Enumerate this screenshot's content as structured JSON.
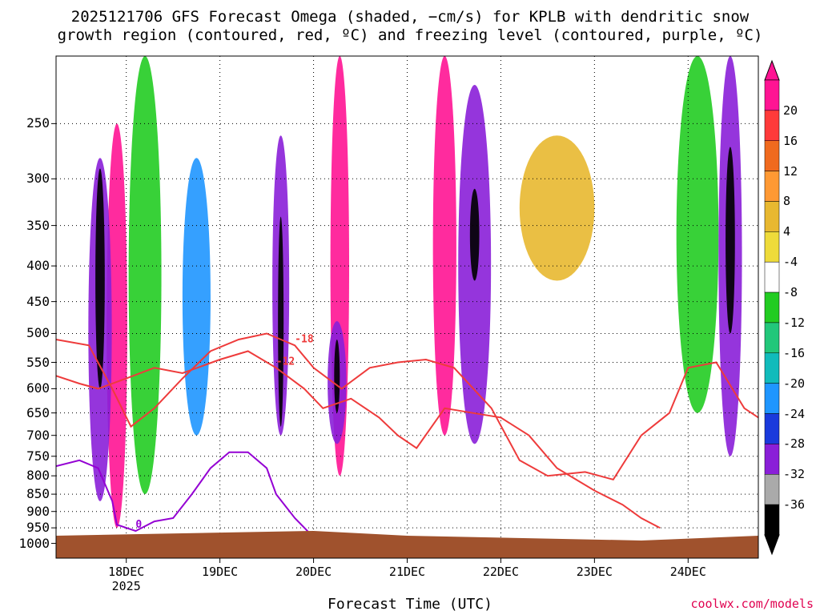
{
  "title": {
    "line1": "2025121706 GFS Forecast Omega (shaded, −cm/s) for KPLB with dendritic snow",
    "line2": "growth region (contoured, red, ºC) and freezing level (contoured, purple, ºC)"
  },
  "credit": "coolwx.com/models",
  "chart_data": {
    "type": "heatmap",
    "xlabel": "Forecast Time (UTC)",
    "x_ticks": [
      {
        "label": "18DEC",
        "sub": "2025",
        "day": 18
      },
      {
        "label": "19DEC",
        "sub": "",
        "day": 19
      },
      {
        "label": "20DEC",
        "sub": "",
        "day": 20
      },
      {
        "label": "21DEC",
        "sub": "",
        "day": 21
      },
      {
        "label": "22DEC",
        "sub": "",
        "day": 22
      },
      {
        "label": "23DEC",
        "sub": "",
        "day": 23
      },
      {
        "label": "24DEC",
        "sub": "",
        "day": 24
      }
    ],
    "x_range_days": [
      17.25,
      24.75
    ],
    "y_ticks": [
      250,
      300,
      350,
      400,
      450,
      500,
      550,
      600,
      650,
      700,
      750,
      800,
      850,
      900,
      950,
      1000
    ],
    "y_range_hpa": [
      200,
      1050
    ],
    "y_scale": "log-pressure",
    "colorbar": {
      "ticks": [
        "20",
        "16",
        "12",
        "8",
        "4",
        "-4",
        "-8",
        "-12",
        "-16",
        "-20",
        "-24",
        "-28",
        "-32",
        "-36"
      ],
      "colors": [
        "#ff1493",
        "#ff3a3a",
        "#f06a1e",
        "#ff9933",
        "#e8b830",
        "#eedb3a",
        "#ffffff",
        "#22cc22",
        "#22c77a",
        "#11bbbb",
        "#1f96ff",
        "#1a3adc",
        "#8a1fd8",
        "#aaaaaa",
        "#000000"
      ],
      "tick_colors": [
        "#ff1493",
        "#ff3a3a",
        "#f06a1e",
        "#ff9933",
        "#e8b830",
        "#eedb3a",
        "#ffffff",
        "#22cc22",
        "#22c77a",
        "#11bbbb",
        "#1f96ff",
        "#1a3adc",
        "#8a1fd8",
        "#aaaaaa",
        "#000000"
      ]
    },
    "omega_bands": [
      {
        "day": 17.9,
        "width": 0.22,
        "top": 250,
        "bottom": 950,
        "color": "#ff1493"
      },
      {
        "day": 17.72,
        "width": 0.25,
        "top": 280,
        "bottom": 870,
        "color": "#8a1fd8"
      },
      {
        "day": 17.72,
        "width": 0.1,
        "top": 290,
        "bottom": 600,
        "color": "#000000"
      },
      {
        "day": 18.2,
        "width": 0.35,
        "top": 200,
        "bottom": 850,
        "color": "#22cc22"
      },
      {
        "day": 18.75,
        "width": 0.3,
        "top": 280,
        "bottom": 700,
        "color": "#1f96ff"
      },
      {
        "day": 19.65,
        "width": 0.18,
        "top": 260,
        "bottom": 700,
        "color": "#8a1fd8"
      },
      {
        "day": 19.65,
        "width": 0.06,
        "top": 340,
        "bottom": 680,
        "color": "#000000"
      },
      {
        "day": 20.28,
        "width": 0.2,
        "top": 200,
        "bottom": 800,
        "color": "#ff1493"
      },
      {
        "day": 20.25,
        "width": 0.2,
        "top": 480,
        "bottom": 720,
        "color": "#8a1fd8"
      },
      {
        "day": 20.25,
        "width": 0.06,
        "top": 510,
        "bottom": 650,
        "color": "#000000"
      },
      {
        "day": 21.4,
        "width": 0.25,
        "top": 200,
        "bottom": 700,
        "color": "#ff1493"
      },
      {
        "day": 21.72,
        "width": 0.35,
        "top": 220,
        "bottom": 720,
        "color": "#8a1fd8"
      },
      {
        "day": 21.72,
        "width": 0.1,
        "top": 310,
        "bottom": 420,
        "color": "#000000"
      },
      {
        "day": 22.6,
        "width": 0.8,
        "top": 260,
        "bottom": 420,
        "color": "#e8b830"
      },
      {
        "day": 24.1,
        "width": 0.45,
        "top": 200,
        "bottom": 650,
        "color": "#22cc22"
      },
      {
        "day": 24.45,
        "width": 0.25,
        "top": 200,
        "bottom": 750,
        "color": "#8a1fd8"
      },
      {
        "day": 24.45,
        "width": 0.1,
        "top": 270,
        "bottom": 500,
        "color": "#000000"
      }
    ],
    "red_contours": [
      {
        "label": "-12",
        "points": [
          [
            17.25,
            575
          ],
          [
            17.5,
            590
          ],
          [
            17.7,
            600
          ],
          [
            18.0,
            580
          ],
          [
            18.3,
            560
          ],
          [
            18.6,
            570
          ],
          [
            19.0,
            545
          ],
          [
            19.3,
            530
          ],
          [
            19.6,
            560
          ],
          [
            19.9,
            600
          ],
          [
            20.1,
            640
          ],
          [
            20.4,
            620
          ],
          [
            20.7,
            660
          ],
          [
            20.9,
            700
          ],
          [
            21.1,
            730
          ],
          [
            21.4,
            640
          ],
          [
            21.7,
            650
          ],
          [
            22.0,
            660
          ],
          [
            22.3,
            700
          ],
          [
            22.6,
            780
          ],
          [
            23.0,
            840
          ],
          [
            23.3,
            880
          ],
          [
            23.5,
            920
          ],
          [
            23.7,
            950
          ]
        ]
      },
      {
        "label": "-18",
        "points": [
          [
            17.25,
            510
          ],
          [
            17.6,
            520
          ],
          [
            17.85,
            600
          ],
          [
            18.05,
            680
          ],
          [
            18.3,
            640
          ],
          [
            18.6,
            580
          ],
          [
            18.9,
            530
          ],
          [
            19.2,
            510
          ],
          [
            19.5,
            500
          ],
          [
            19.8,
            520
          ],
          [
            20.0,
            560
          ],
          [
            20.3,
            600
          ],
          [
            20.6,
            560
          ],
          [
            20.9,
            550
          ],
          [
            21.2,
            545
          ],
          [
            21.5,
            560
          ],
          [
            21.9,
            640
          ],
          [
            22.2,
            760
          ],
          [
            22.5,
            800
          ],
          [
            22.9,
            790
          ],
          [
            23.2,
            810
          ],
          [
            23.5,
            700
          ],
          [
            23.8,
            650
          ],
          [
            24.0,
            560
          ],
          [
            24.3,
            550
          ],
          [
            24.6,
            640
          ],
          [
            24.75,
            660
          ]
        ]
      }
    ],
    "purple_contours": [
      {
        "label": "0",
        "points": [
          [
            17.25,
            775
          ],
          [
            17.5,
            760
          ],
          [
            17.7,
            780
          ],
          [
            17.85,
            870
          ],
          [
            17.9,
            940
          ],
          [
            18.1,
            960
          ],
          [
            18.3,
            930
          ],
          [
            18.5,
            920
          ],
          [
            18.7,
            850
          ],
          [
            18.9,
            780
          ],
          [
            19.1,
            740
          ],
          [
            19.3,
            740
          ],
          [
            19.5,
            780
          ],
          [
            19.6,
            850
          ],
          [
            19.8,
            920
          ],
          [
            20.0,
            980
          ]
        ]
      }
    ]
  }
}
